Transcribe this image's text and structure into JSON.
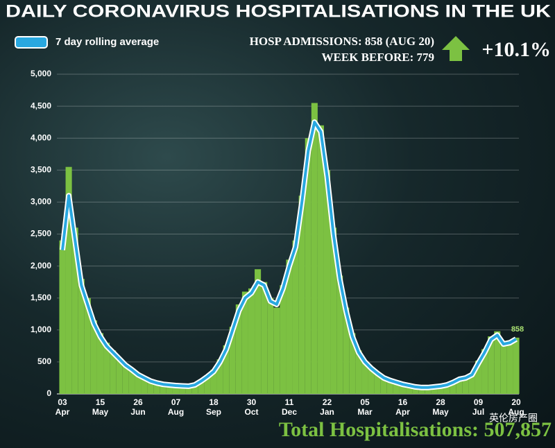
{
  "chart_data": {
    "type": "line",
    "title": "DAILY CORONAVIRUS HOSPITALISATIONS IN THE UK",
    "annotations": [
      "HOSP ADMISSIONS: 858 (AUG 20)",
      "WEEK BEFORE: 779",
      "+10.1%",
      "Total Hospitalisations: 507,857",
      "英伦房产圈"
    ],
    "categories": [
      "03\nApr",
      null,
      null,
      null,
      null,
      null,
      "15\nMay",
      null,
      null,
      null,
      null,
      null,
      "26\nJun",
      null,
      null,
      null,
      null,
      null,
      "07\nAug",
      null,
      null,
      null,
      null,
      null,
      "18\nSep",
      null,
      null,
      null,
      null,
      null,
      "30\nOct",
      null,
      null,
      null,
      null,
      null,
      "11\nDec",
      null,
      null,
      null,
      null,
      null,
      "22\nJan",
      null,
      null,
      null,
      null,
      null,
      "05\nMar",
      null,
      null,
      null,
      null,
      null,
      "16\nApr",
      null,
      null,
      null,
      null,
      null,
      "28\nMay",
      null,
      null,
      null,
      null,
      null,
      "09\nJul",
      null,
      null,
      null,
      null,
      null,
      "20\nAug"
    ],
    "series": [
      {
        "name": "7 day rolling average",
        "color": "#29a8e0",
        "outline": "#ffffff",
        "values": [
          2250,
          3100,
          2400,
          1700,
          1400,
          1100,
          900,
          750,
          650,
          550,
          450,
          380,
          300,
          250,
          200,
          170,
          150,
          140,
          130,
          125,
          120,
          140,
          200,
          270,
          350,
          500,
          700,
          1000,
          1300,
          1500,
          1580,
          1750,
          1700,
          1450,
          1400,
          1650,
          2000,
          2300,
          3000,
          3800,
          4250,
          4100,
          3400,
          2500,
          1800,
          1300,
          900,
          650,
          500,
          400,
          320,
          250,
          210,
          180,
          150,
          130,
          110,
          100,
          100,
          110,
          120,
          140,
          180,
          230,
          250,
          300,
          480,
          650,
          850,
          920,
          780,
          800,
          858
        ]
      },
      {
        "type": "bar",
        "color": "#7cc142",
        "values": [
          2400,
          3550,
          2600,
          1800,
          1500,
          1150,
          950,
          800,
          680,
          560,
          470,
          400,
          320,
          260,
          210,
          180,
          160,
          150,
          140,
          130,
          125,
          150,
          210,
          290,
          380,
          540,
          760,
          1050,
          1400,
          1600,
          1650,
          1950,
          1750,
          1500,
          1350,
          1700,
          2100,
          2400,
          3100,
          4000,
          4550,
          4200,
          3500,
          2600,
          1850,
          1350,
          950,
          680,
          520,
          420,
          330,
          260,
          220,
          185,
          160,
          135,
          115,
          105,
          100,
          115,
          125,
          150,
          190,
          240,
          260,
          320,
          520,
          700,
          900,
          980,
          800,
          820,
          880
        ]
      }
    ],
    "ylim": [
      0,
      5000
    ],
    "yticks": [
      0,
      500,
      {
        "value": 1000,
        "label": "1,000"
      },
      {
        "value": 1500,
        "label": "1,500"
      },
      {
        "value": 2000,
        "label": "2,000"
      },
      {
        "value": 2500,
        "label": "2,500"
      },
      {
        "value": 3000,
        "label": "3,000"
      },
      {
        "value": 3500,
        "label": "3,500"
      },
      {
        "value": 4000,
        "label": "4,000"
      },
      {
        "value": 4500,
        "label": "4,500"
      },
      {
        "value": 5000,
        "label": "5,000"
      }
    ],
    "grid": true
  }
}
